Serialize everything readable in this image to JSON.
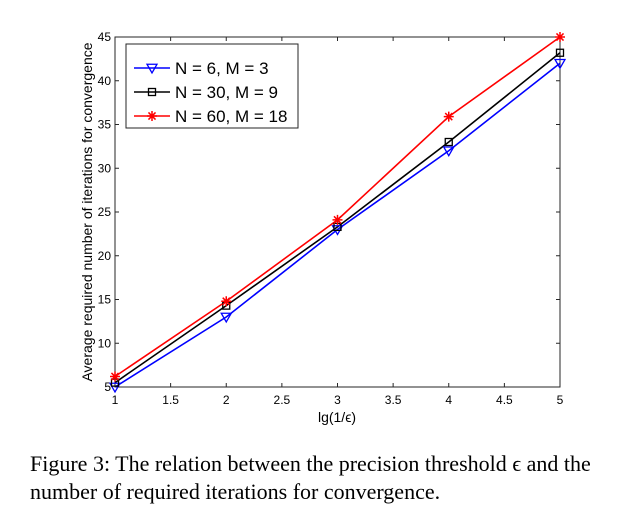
{
  "chart_data": {
    "type": "line",
    "x": [
      1,
      2,
      3,
      4,
      5
    ],
    "xticks": [
      "1",
      "1.5",
      "2",
      "2.5",
      "3",
      "3.5",
      "4",
      "4.5",
      "5"
    ],
    "yticks": [
      "5",
      "10",
      "15",
      "20",
      "25",
      "30",
      "35",
      "40",
      "45"
    ],
    "xlabel": "lg(1/ϵ)",
    "ylabel": "Average required number of iterations for convergence",
    "xlim": [
      1,
      5
    ],
    "ylim": [
      5,
      45
    ],
    "grid": false,
    "legend_position": "top-left",
    "series": [
      {
        "name": "N = 6, M = 3",
        "color": "#0000ff",
        "marker": "triangle-down",
        "values": [
          5.0,
          13.0,
          23.0,
          32.0,
          42.0
        ]
      },
      {
        "name": "N = 30, M = 9",
        "color": "#000000",
        "marker": "square",
        "values": [
          5.5,
          14.3,
          23.3,
          33.0,
          43.2
        ]
      },
      {
        "name": "N = 60, M = 18",
        "color": "#ff0000",
        "marker": "star",
        "values": [
          6.2,
          14.8,
          24.1,
          35.9,
          45.0
        ]
      }
    ]
  },
  "caption": "Figure 3: The relation between the precision threshold ϵ and the number of required iterations for convergence."
}
